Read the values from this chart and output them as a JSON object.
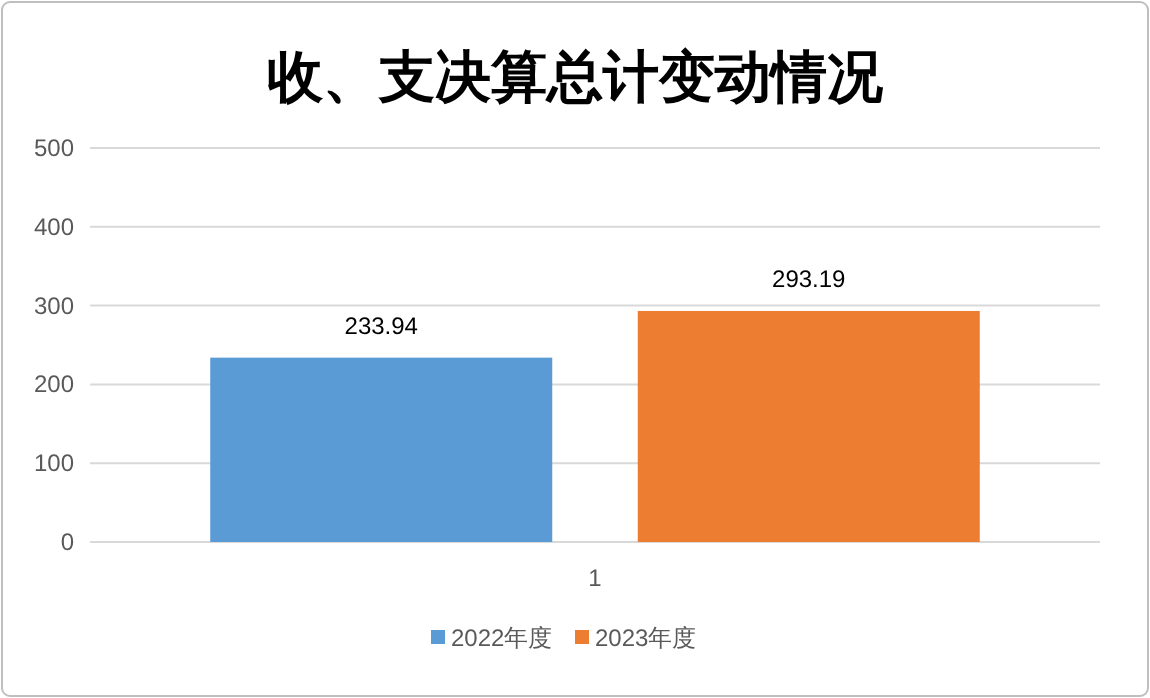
{
  "chart_data": {
    "type": "bar",
    "title": "收、支决算总计变动情况",
    "categories": [
      "1"
    ],
    "series": [
      {
        "name": "2022年度",
        "color": "#5b9bd5",
        "values": [
          233.94
        ]
      },
      {
        "name": "2023年度",
        "color": "#ed7d31",
        "values": [
          293.19
        ]
      }
    ],
    "ylim": [
      0,
      500
    ],
    "yticks": [
      0,
      100,
      200,
      300,
      400,
      500
    ],
    "grid": "y",
    "legend": "bottom",
    "data_labels": true
  }
}
